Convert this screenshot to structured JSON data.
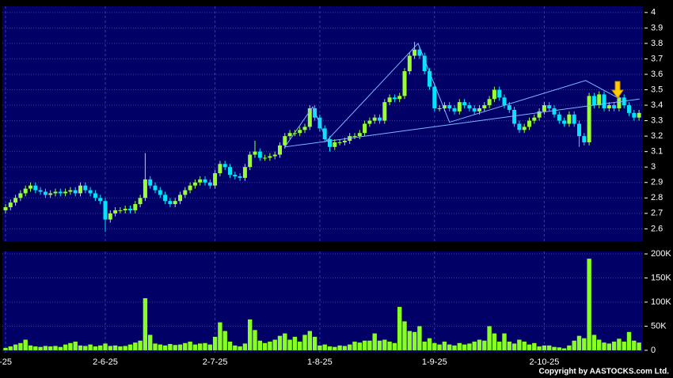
{
  "chart_data": {
    "type": "candlestick",
    "categories": [
      "-25",
      null,
      null,
      null,
      null,
      null,
      null,
      null,
      null,
      null,
      null,
      null,
      null,
      null,
      null,
      null,
      null,
      null,
      null,
      null,
      "2-6-25",
      null,
      null,
      null,
      null,
      null,
      null,
      null,
      null,
      null,
      null,
      null,
      null,
      null,
      null,
      null,
      null,
      null,
      null,
      null,
      null,
      null,
      "2-7-25",
      null,
      null,
      null,
      null,
      null,
      null,
      null,
      null,
      null,
      null,
      null,
      null,
      null,
      null,
      null,
      null,
      null,
      null,
      null,
      null,
      "1-8-25",
      null,
      null,
      null,
      null,
      null,
      null,
      null,
      null,
      null,
      null,
      null,
      null,
      null,
      null,
      null,
      null,
      null,
      null,
      null,
      null,
      null,
      null,
      "1-9-25",
      null,
      null,
      null,
      null,
      null,
      null,
      null,
      null,
      null,
      null,
      null,
      null,
      null,
      null,
      null,
      null,
      null,
      null,
      null,
      null,
      null,
      "2-10-25",
      null,
      null,
      null,
      null,
      null,
      null,
      null,
      null,
      null,
      null,
      null,
      null,
      null,
      null,
      null,
      null,
      null,
      null,
      null
    ],
    "open": [
      2.72,
      2.74,
      2.77,
      2.8,
      2.83,
      2.86,
      2.88,
      2.85,
      2.84,
      2.82,
      2.83,
      2.84,
      2.83,
      2.84,
      2.85,
      2.83,
      2.88,
      2.85,
      2.83,
      2.8,
      2.78,
      2.66,
      2.7,
      2.72,
      2.72,
      2.73,
      2.72,
      2.76,
      2.8,
      2.92,
      2.88,
      2.85,
      2.82,
      2.78,
      2.76,
      2.78,
      2.82,
      2.85,
      2.88,
      2.9,
      2.92,
      2.9,
      2.88,
      2.96,
      3.02,
      3.0,
      2.95,
      2.94,
      2.93,
      3.0,
      3.08,
      3.1,
      3.06,
      3.06,
      3.07,
      3.08,
      3.14,
      3.2,
      3.22,
      3.22,
      3.24,
      3.26,
      3.38,
      3.32,
      3.25,
      3.18,
      3.13,
      3.16,
      3.16,
      3.17,
      3.2,
      3.2,
      3.22,
      3.28,
      3.3,
      3.32,
      3.3,
      3.42,
      3.45,
      3.44,
      3.46,
      3.62,
      3.72,
      3.76,
      3.72,
      3.62,
      3.52,
      3.38,
      3.38,
      3.4,
      3.38,
      3.36,
      3.42,
      3.4,
      3.38,
      3.36,
      3.38,
      3.4,
      3.44,
      3.5,
      3.45,
      3.4,
      3.37,
      3.28,
      3.24,
      3.26,
      3.3,
      3.32,
      3.36,
      3.4,
      3.38,
      3.34,
      3.3,
      3.28,
      3.34,
      3.28,
      3.2,
      3.16,
      3.46,
      3.4,
      3.47,
      3.38,
      3.4,
      3.38,
      3.45,
      3.4,
      3.35,
      3.32
    ],
    "high": [
      2.76,
      2.79,
      2.82,
      2.85,
      2.88,
      2.9,
      2.9,
      2.87,
      2.86,
      2.85,
      2.86,
      2.86,
      2.86,
      2.87,
      2.87,
      2.9,
      2.9,
      2.87,
      2.85,
      2.82,
      2.8,
      2.72,
      2.74,
      2.74,
      2.75,
      2.75,
      2.78,
      2.82,
      3.09,
      2.94,
      2.9,
      2.87,
      2.84,
      2.8,
      2.8,
      2.84,
      2.87,
      2.9,
      2.92,
      2.94,
      2.94,
      2.92,
      2.98,
      3.04,
      3.04,
      3.02,
      2.97,
      2.96,
      3.02,
      3.1,
      3.17,
      3.12,
      3.08,
      3.09,
      3.1,
      3.16,
      3.22,
      3.24,
      3.24,
      3.26,
      3.28,
      3.4,
      3.4,
      3.34,
      3.27,
      3.2,
      3.18,
      3.18,
      3.19,
      3.22,
      3.22,
      3.24,
      3.3,
      3.32,
      3.34,
      3.34,
      3.44,
      3.47,
      3.47,
      3.48,
      3.64,
      3.74,
      3.81,
      3.78,
      3.74,
      3.64,
      3.54,
      3.4,
      3.42,
      3.42,
      3.4,
      3.44,
      3.44,
      3.42,
      3.4,
      3.4,
      3.42,
      3.46,
      3.52,
      3.52,
      3.47,
      3.42,
      3.39,
      3.3,
      3.28,
      3.32,
      3.34,
      3.38,
      3.42,
      3.42,
      3.4,
      3.36,
      3.32,
      3.36,
      3.36,
      3.3,
      3.22,
      3.48,
      3.48,
      3.49,
      3.49,
      3.42,
      3.42,
      3.47,
      3.47,
      3.42,
      3.37,
      3.37
    ],
    "low": [
      2.7,
      2.72,
      2.75,
      2.78,
      2.81,
      2.84,
      2.83,
      2.82,
      2.8,
      2.8,
      2.81,
      2.81,
      2.81,
      2.82,
      2.81,
      2.81,
      2.83,
      2.81,
      2.78,
      2.76,
      2.58,
      2.64,
      2.68,
      2.7,
      2.7,
      2.7,
      2.7,
      2.74,
      2.78,
      2.86,
      2.83,
      2.8,
      2.76,
      2.74,
      2.74,
      2.76,
      2.8,
      2.83,
      2.86,
      2.88,
      2.88,
      2.86,
      2.86,
      2.94,
      2.98,
      2.93,
      2.92,
      2.91,
      2.91,
      2.98,
      3.06,
      3.04,
      3.04,
      3.04,
      3.05,
      3.06,
      3.12,
      3.18,
      3.2,
      3.2,
      3.22,
      3.24,
      3.3,
      3.23,
      3.16,
      3.1,
      3.11,
      3.14,
      3.14,
      3.15,
      3.18,
      3.18,
      3.2,
      3.26,
      3.28,
      3.28,
      3.28,
      3.4,
      3.42,
      3.42,
      3.44,
      3.6,
      3.7,
      3.7,
      3.6,
      3.5,
      3.36,
      3.36,
      3.36,
      3.36,
      3.34,
      3.34,
      3.38,
      3.36,
      3.34,
      3.34,
      3.36,
      3.38,
      3.42,
      3.43,
      3.38,
      3.35,
      3.26,
      3.22,
      3.22,
      3.24,
      3.28,
      3.3,
      3.34,
      3.36,
      3.32,
      3.28,
      3.26,
      3.26,
      3.26,
      3.13,
      3.14,
      3.14,
      3.38,
      3.38,
      3.36,
      3.36,
      3.36,
      3.36,
      3.38,
      3.33,
      3.3,
      3.3
    ],
    "close": [
      2.74,
      2.77,
      2.8,
      2.83,
      2.86,
      2.88,
      2.85,
      2.84,
      2.82,
      2.83,
      2.84,
      2.83,
      2.84,
      2.85,
      2.83,
      2.88,
      2.85,
      2.83,
      2.8,
      2.78,
      2.66,
      2.7,
      2.72,
      2.72,
      2.73,
      2.72,
      2.76,
      2.8,
      2.92,
      2.88,
      2.85,
      2.82,
      2.78,
      2.76,
      2.78,
      2.82,
      2.85,
      2.88,
      2.9,
      2.92,
      2.9,
      2.88,
      2.96,
      3.02,
      3.0,
      2.95,
      2.94,
      2.93,
      3.0,
      3.08,
      3.1,
      3.06,
      3.06,
      3.07,
      3.08,
      3.14,
      3.2,
      3.22,
      3.22,
      3.24,
      3.26,
      3.38,
      3.32,
      3.25,
      3.18,
      3.13,
      3.16,
      3.16,
      3.17,
      3.2,
      3.2,
      3.22,
      3.28,
      3.3,
      3.32,
      3.3,
      3.42,
      3.45,
      3.44,
      3.46,
      3.62,
      3.72,
      3.76,
      3.72,
      3.62,
      3.52,
      3.38,
      3.38,
      3.4,
      3.38,
      3.36,
      3.42,
      3.4,
      3.38,
      3.36,
      3.38,
      3.4,
      3.44,
      3.5,
      3.45,
      3.4,
      3.37,
      3.28,
      3.24,
      3.26,
      3.3,
      3.32,
      3.36,
      3.4,
      3.38,
      3.34,
      3.3,
      3.28,
      3.34,
      3.28,
      3.2,
      3.16,
      3.46,
      3.4,
      3.47,
      3.38,
      3.4,
      3.38,
      3.45,
      3.4,
      3.35,
      3.32,
      3.35
    ],
    "up_color": "#99ff33",
    "down_color": "#00e5ff",
    "ylim": [
      2.52,
      4.04
    ],
    "yticks": [
      2.6,
      2.7,
      2.8,
      2.9,
      3,
      3.1,
      3.2,
      3.3,
      3.4,
      3.5,
      3.6,
      3.7,
      3.8,
      3.9,
      4
    ],
    "grid": true,
    "trendlines": [
      {
        "color": "#7fb8ff",
        "x": [
          56,
          61.6,
          64.4,
          82.7,
          89,
          116.3,
          123.2
        ],
        "y": [
          3.13,
          3.39,
          3.17,
          3.8,
          3.29,
          3.56,
          3.44
        ]
      },
      {
        "color": "#7fb8ff",
        "x": [
          56,
          127.1
        ],
        "y": [
          3.13,
          3.44
        ]
      }
    ],
    "volume": {
      "color": "#88ff22",
      "values": [
        5000,
        8000,
        12000,
        15000,
        22000,
        10000,
        8000,
        7000,
        9000,
        8000,
        9000,
        7000,
        12000,
        15000,
        18000,
        10000,
        9000,
        12000,
        8000,
        10000,
        14000,
        9000,
        10000,
        8000,
        9000,
        12000,
        16000,
        20000,
        108000,
        32000,
        14000,
        12000,
        10000,
        13000,
        11000,
        12000,
        15000,
        18000,
        12000,
        14000,
        15000,
        12000,
        28000,
        58000,
        40000,
        18000,
        10000,
        8000,
        14000,
        64000,
        42000,
        20000,
        15000,
        18000,
        22000,
        30000,
        35000,
        22000,
        28000,
        18000,
        32000,
        40000,
        28000,
        10000,
        12000,
        8000,
        7000,
        10000,
        9000,
        12000,
        18000,
        16000,
        20000,
        20000,
        35000,
        20000,
        22000,
        18000,
        15000,
        90000,
        60000,
        40000,
        38000,
        50000,
        18000,
        25000,
        15000,
        12000,
        18000,
        12000,
        10000,
        15000,
        12000,
        14000,
        18000,
        22000,
        20000,
        50000,
        35000,
        18000,
        35000,
        18000,
        14000,
        22000,
        18000,
        12000,
        15000,
        8000,
        10000,
        10000,
        7000,
        6000,
        4000,
        10000,
        20000,
        30000,
        25000,
        190000,
        32000,
        22000,
        16000,
        14000,
        18000,
        24000,
        18000,
        38000,
        20000,
        16000
      ],
      "ylim": [
        -5000,
        205000
      ],
      "yticks": [
        0,
        {
          "value": 50000,
          "label": "50K"
        },
        {
          "value": 100000,
          "label": "100K"
        },
        {
          "value": 150000,
          "label": "150K"
        },
        {
          "value": 200000,
          "label": "200K"
        }
      ]
    }
  },
  "copyright": "Copyright by AASTOCKS.com Ltd."
}
